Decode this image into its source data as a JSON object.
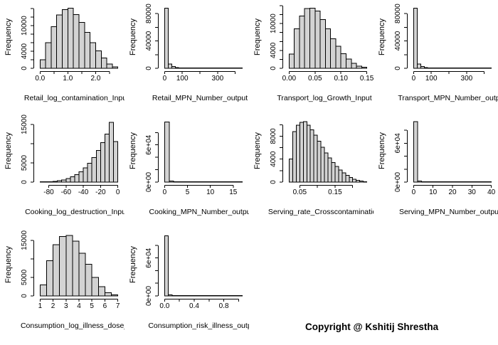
{
  "footer": {
    "copyright": "Copyright @ Kshitij Shrestha"
  },
  "colors": {
    "background": "#ffffff",
    "bar_fill": "#d3d3d3",
    "bar_border": "#000000",
    "axis": "#000000",
    "text": "#000000"
  },
  "chart_data": [
    {
      "id": "retail-log-contamination-input",
      "type": "bar",
      "title": "Retail_log_contamination_Inpu",
      "ylabel": "Frequency",
      "bin_start": 0.0,
      "bin_width": 0.2,
      "values": [
        2000,
        6000,
        9800,
        12500,
        13800,
        14100,
        12600,
        10800,
        8400,
        6000,
        4100,
        2400,
        1000,
        300
      ],
      "xlim": [
        -0.11,
        2.91
      ],
      "ylim": [
        0,
        14700
      ],
      "xticks": {
        "at": [
          0,
          0.5,
          1.0,
          1.5,
          2.0,
          2.5
        ],
        "labels": [
          "0.0",
          "",
          "1.0",
          "",
          "2.0",
          ""
        ]
      },
      "yticks": {
        "at": [
          0,
          2000,
          4000,
          6000,
          8000,
          10000,
          12000,
          14000
        ],
        "labels": [
          "0",
          "",
          "4000",
          "",
          "",
          "10000",
          "",
          ""
        ]
      }
    },
    {
      "id": "retail-mpn-number-output",
      "type": "bar",
      "title": "Retail_MPN_Number_output",
      "ylabel": "Frequency",
      "bin_start": 0,
      "bin_width": 20,
      "values": [
        88000,
        6200,
        2600,
        1300,
        700,
        420,
        260,
        170,
        110,
        75,
        50,
        35,
        25,
        18,
        13,
        9,
        7,
        5,
        4,
        3,
        2,
        2
      ],
      "xlim": [
        -17.6,
        457.6
      ],
      "ylim": [
        0,
        91500
      ],
      "xticks": {
        "at": [
          0,
          100,
          200,
          300,
          400
        ],
        "labels": [
          "0",
          "100",
          "",
          "300",
          ""
        ]
      },
      "yticks": {
        "at": [
          0,
          20000,
          40000,
          60000,
          80000
        ],
        "labels": [
          "0",
          "",
          "40000",
          "",
          "80000"
        ]
      }
    },
    {
      "id": "transport-log-growth-input",
      "type": "bar",
      "title": "Transport_log_Growth_Input",
      "ylabel": "Frequency",
      "bin_start": 0,
      "bin_width": 0.01,
      "values": [
        3200,
        8800,
        11700,
        13400,
        13450,
        12800,
        10900,
        8800,
        6600,
        4900,
        3300,
        2100,
        1100,
        500,
        200
      ],
      "xlim": [
        -0.006,
        0.156
      ],
      "ylim": [
        0,
        14000
      ],
      "xticks": {
        "at": [
          0,
          0.05,
          0.1,
          0.15
        ],
        "labels": [
          "0.00",
          "0.05",
          "0.10",
          "0.15"
        ]
      },
      "yticks": {
        "at": [
          0,
          2000,
          4000,
          6000,
          8000,
          10000,
          12000,
          14000
        ],
        "labels": [
          "0",
          "",
          "4000",
          "",
          "",
          "10000",
          "",
          ""
        ]
      }
    },
    {
      "id": "transport-mpn-number-output",
      "type": "bar",
      "title": "Transport_MPN_Number_outp",
      "ylabel": "Frequency",
      "bin_start": 0,
      "bin_width": 20,
      "values": [
        88000,
        6200,
        2600,
        1300,
        700,
        420,
        260,
        170,
        110,
        75,
        50,
        35,
        25,
        18,
        13,
        9,
        7,
        5,
        4,
        3,
        2,
        2
      ],
      "xlim": [
        -17.6,
        457.6
      ],
      "ylim": [
        0,
        91500
      ],
      "xticks": {
        "at": [
          0,
          100,
          200,
          300,
          400
        ],
        "labels": [
          "0",
          "100",
          "",
          "300",
          ""
        ]
      },
      "yticks": {
        "at": [
          0,
          20000,
          40000,
          60000,
          80000
        ],
        "labels": [
          "0",
          "",
          "40000",
          "",
          "80000"
        ]
      }
    },
    {
      "id": "cooking-log-destruction-input",
      "type": "bar",
      "title": "Cooking_log_destruction_Inpu",
      "ylabel": "Frequency",
      "bin_start": -90,
      "bin_width": 5,
      "values": [
        50,
        80,
        130,
        220,
        360,
        580,
        900,
        1350,
        1950,
        2700,
        3700,
        4900,
        6400,
        8200,
        10300,
        12500,
        15600,
        10600
      ],
      "xlim": [
        -93.6,
        3.6
      ],
      "ylim": [
        0,
        16300
      ],
      "xticks": {
        "at": [
          -80,
          -60,
          -40,
          -20,
          0
        ],
        "labels": [
          "-80",
          "-60",
          "-40",
          "-20",
          "0"
        ]
      },
      "yticks": {
        "at": [
          0,
          5000,
          10000,
          15000
        ],
        "labels": [
          "0",
          "5000",
          "",
          "15000"
        ]
      }
    },
    {
      "id": "cooking-mpn-number-output",
      "type": "bar",
      "title": "Cooking_MPN_Number_outpu",
      "ylabel": "Frequency",
      "bin_start": 0,
      "bin_width": 1,
      "values": [
        97000,
        1500,
        550,
        280,
        160,
        100,
        70,
        50,
        35,
        25,
        18,
        13,
        9,
        6,
        4,
        3,
        2
      ],
      "xlim": [
        -0.68,
        17.68
      ],
      "ylim": [
        0,
        101000
      ],
      "xticks": {
        "at": [
          0,
          5,
          10,
          15
        ],
        "labels": [
          "0",
          "5",
          "10",
          "15"
        ]
      },
      "yticks": {
        "at": [
          0,
          20000,
          40000,
          60000,
          80000
        ],
        "labels": [
          "0e+00",
          "",
          "",
          "6e+04",
          ""
        ]
      }
    },
    {
      "id": "serving-rate-crosscontamination",
      "type": "bar",
      "title": "Serving_rate_Crosscontamination",
      "ylabel": "Frequency",
      "bin_start": 0.02,
      "bin_width": 0.01,
      "values": [
        4000,
        8800,
        9900,
        10400,
        10500,
        9900,
        9100,
        8200,
        7100,
        6100,
        5100,
        4200,
        3400,
        2700,
        2100,
        1600,
        1150,
        800,
        520,
        300,
        160,
        80
      ],
      "xlim": [
        0.011,
        0.249
      ],
      "ylim": [
        0,
        10900
      ],
      "xticks": {
        "at": [
          0.05,
          0.1,
          0.15,
          0.2
        ],
        "labels": [
          "0.05",
          "",
          "0.15",
          ""
        ]
      },
      "yticks": {
        "at": [
          0,
          2000,
          4000,
          6000,
          8000,
          10000
        ],
        "labels": [
          "0",
          "",
          "4000",
          "",
          "8000",
          ""
        ]
      }
    },
    {
      "id": "serving-mpn-number-output",
      "type": "bar",
      "title": "Serving_MPN_Number_outpu",
      "ylabel": "Frequency",
      "bin_start": 0,
      "bin_width": 2,
      "values": [
        93000,
        1900,
        550,
        260,
        150,
        95,
        65,
        45,
        32,
        23,
        17,
        12,
        9,
        7,
        5,
        4,
        3,
        2,
        2,
        1
      ],
      "xlim": [
        -1.6,
        41.6
      ],
      "ylim": [
        0,
        96500
      ],
      "xticks": {
        "at": [
          0,
          10,
          20,
          30,
          40
        ],
        "labels": [
          "0",
          "10",
          "20",
          "30",
          "40"
        ]
      },
      "yticks": {
        "at": [
          0,
          20000,
          40000,
          60000,
          80000
        ],
        "labels": [
          "0e+00",
          "",
          "",
          "6e+04",
          ""
        ]
      }
    },
    {
      "id": "consumption-log-illness-dose",
      "type": "bar",
      "title": "Consumption_log_illness_dose_I",
      "ylabel": "Frequency",
      "bin_start": 1,
      "bin_width": 0.5,
      "values": [
        3000,
        9500,
        13800,
        16000,
        16300,
        14800,
        11500,
        8500,
        5000,
        2500,
        900,
        250
      ],
      "xlim": [
        0.76,
        7.24
      ],
      "ylim": [
        0,
        16900
      ],
      "xticks": {
        "at": [
          1,
          2,
          3,
          4,
          5,
          6,
          7
        ],
        "labels": [
          "1",
          "2",
          "3",
          "4",
          "5",
          "6",
          "7"
        ]
      },
      "yticks": {
        "at": [
          0,
          5000,
          10000,
          15000
        ],
        "labels": [
          "0",
          "5000",
          "",
          "15000"
        ]
      }
    },
    {
      "id": "consumption-risk-illness-output",
      "type": "bar",
      "title": "Consumption_risk_illness_outp",
      "ylabel": "Frequency",
      "bin_start": 0,
      "bin_width": 0.05,
      "values": [
        95000,
        1600,
        450,
        180,
        90,
        55,
        35,
        25,
        18,
        13,
        10,
        8,
        6,
        5,
        4,
        3,
        2,
        2,
        1,
        1,
        1
      ],
      "xlim": [
        -0.042,
        1.092
      ],
      "ylim": [
        0,
        99000
      ],
      "xticks": {
        "at": [
          0,
          0.2,
          0.4,
          0.6,
          0.8,
          1.0
        ],
        "labels": [
          "0.0",
          "",
          "0.4",
          "",
          "0.8",
          ""
        ]
      },
      "yticks": {
        "at": [
          0,
          20000,
          40000,
          60000,
          80000
        ],
        "labels": [
          "0e+00",
          "",
          "",
          "6e+04",
          ""
        ]
      }
    }
  ]
}
